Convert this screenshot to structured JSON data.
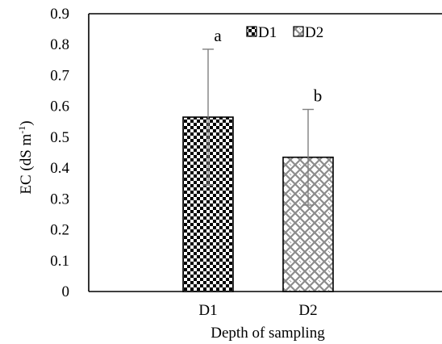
{
  "chart_data": {
    "type": "bar",
    "categories": [
      "D1",
      "D2"
    ],
    "values": [
      0.565,
      0.435
    ],
    "error": [
      0.22,
      0.155
    ],
    "annotations": [
      "a",
      "b"
    ],
    "xlabel": "Depth of sampling",
    "ylabel_main": "EC (dS m",
    "ylabel_sup": "-1",
    "ylabel_close": ")",
    "ylim": [
      0,
      0.9
    ],
    "yticks": [
      "0",
      "0.1",
      "0.2",
      "0.3",
      "0.4",
      "0.5",
      "0.6",
      "0.7",
      "0.8",
      "0.9"
    ],
    "legend": [
      "D1",
      "D2"
    ],
    "legend_position": "top-center",
    "grid": false
  }
}
